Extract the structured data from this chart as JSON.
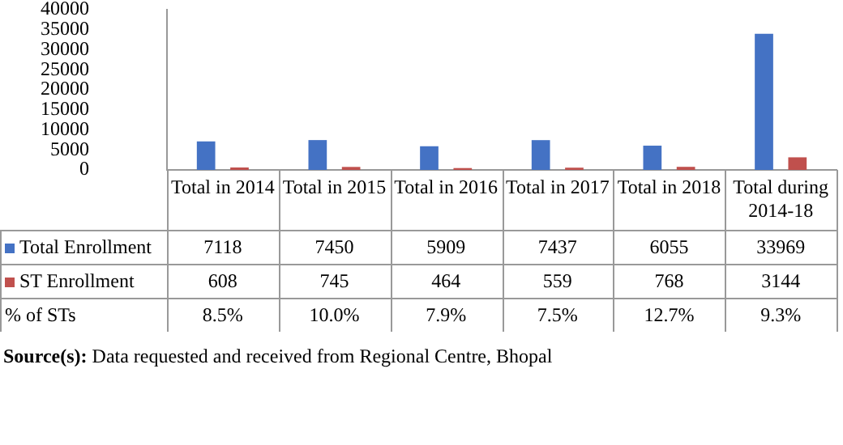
{
  "chart_data": {
    "type": "bar",
    "categories": [
      "Total in 2014",
      "Total in 2015",
      "Total in 2016",
      "Total in 2017",
      "Total in 2018",
      "Total during 2014-18"
    ],
    "series": [
      {
        "name": "Total Enrollment",
        "color": "#4472c4",
        "values": [
          7118,
          7450,
          5909,
          7437,
          6055,
          33969
        ]
      },
      {
        "name": "ST Enrollment",
        "color": "#c0504d",
        "values": [
          608,
          745,
          464,
          559,
          768,
          3144
        ]
      },
      {
        "name": "% of STs",
        "values": [
          8.5,
          10.0,
          7.9,
          7.5,
          12.7,
          9.3
        ],
        "value_labels": [
          "8.5%",
          "10.0%",
          "7.9%",
          "7.5%",
          "12.7%",
          "9.3%"
        ]
      }
    ],
    "ylim": [
      0,
      40000
    ],
    "yticks": [
      0,
      5000,
      10000,
      15000,
      20000,
      25000,
      30000,
      35000,
      40000
    ],
    "grid": false,
    "legend": "bottom left",
    "data_labels": true,
    "annotations": [
      "Source(s): Data requested and received from Regional Centre, Bhopal"
    ]
  }
}
